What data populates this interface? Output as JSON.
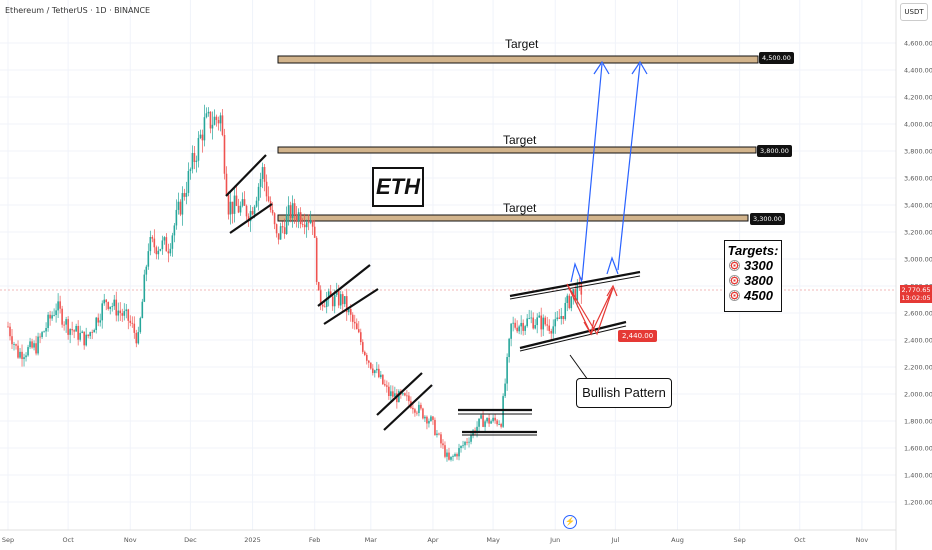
{
  "header": {
    "symbol": "Ethereum / TetherUS · 1D · BINANCE",
    "currency": "USDT"
  },
  "current_price": {
    "value": "2,770.65",
    "countdown": "13:02:05"
  },
  "annotations": {
    "eth_label": "ETH",
    "target_text": "Target",
    "targets_title": "Targets:",
    "targets_list": [
      "3300",
      "3800",
      "4500"
    ],
    "callout": "Bullish Pattern",
    "support_price": "2,440.00",
    "target_prices": [
      "4,500.00",
      "3,800.00",
      "3,300.00"
    ]
  },
  "colors": {
    "up": "#26a69a",
    "down": "#ef5350",
    "band": "#d2b48c",
    "arrow_blue": "#2962ff",
    "arrow_red": "#e53935"
  },
  "chart_data": {
    "type": "candlestick",
    "title": "Ethereum / TetherUS · 1D · BINANCE",
    "x_ticks": [
      "Sep",
      "Oct",
      "Nov",
      "Dec",
      "2025",
      "Feb",
      "Mar",
      "Apr",
      "May",
      "Jun",
      "Jul",
      "Aug",
      "Sep",
      "Oct",
      "Nov"
    ],
    "y_ticks": [
      "4,600.00",
      "4,400.00",
      "4,200.00",
      "4,000.00",
      "3,800.00",
      "3,600.00",
      "3,400.00",
      "3,200.00",
      "3,000.00",
      "2,800.00",
      "2,600.00",
      "2,400.00",
      "2,200.00",
      "2,000.00",
      "1,800.00",
      "1,600.00",
      "1,400.00",
      "1,200.00"
    ],
    "ylim": [
      1100,
      4700
    ],
    "last_price": 2770.65,
    "target_levels": [
      4500,
      3800,
      3300
    ],
    "support_level": 2440,
    "close_path": [
      [
        "2024-09-01",
        2500
      ],
      [
        "2024-09-06",
        2300
      ],
      [
        "2024-09-15",
        2350
      ],
      [
        "2024-09-25",
        2650
      ],
      [
        "2024-10-01",
        2500
      ],
      [
        "2024-10-10",
        2400
      ],
      [
        "2024-10-20",
        2700
      ],
      [
        "2024-10-31",
        2550
      ],
      [
        "2024-11-05",
        2400
      ],
      [
        "2024-11-10",
        3100
      ],
      [
        "2024-11-20",
        3100
      ],
      [
        "2024-11-30",
        3600
      ],
      [
        "2024-12-08",
        4000
      ],
      [
        "2024-12-16",
        4050
      ],
      [
        "2024-12-20",
        3400
      ],
      [
        "2024-12-31",
        3350
      ],
      [
        "2025-01-06",
        3650
      ],
      [
        "2025-01-13",
        3150
      ],
      [
        "2025-01-20",
        3350
      ],
      [
        "2025-01-31",
        3300
      ],
      [
        "2025-02-03",
        2700
      ],
      [
        "2025-02-15",
        2700
      ],
      [
        "2025-02-28",
        2250
      ],
      [
        "2025-03-10",
        2000
      ],
      [
        "2025-03-20",
        1950
      ],
      [
        "2025-03-31",
        1800
      ],
      [
        "2025-04-09",
        1500
      ],
      [
        "2025-04-15",
        1600
      ],
      [
        "2025-04-25",
        1800
      ],
      [
        "2025-05-05",
        1800
      ],
      [
        "2025-05-10",
        2500
      ],
      [
        "2025-05-20",
        2550
      ],
      [
        "2025-06-01",
        2500
      ],
      [
        "2025-06-10",
        2750
      ],
      [
        "2025-06-14",
        2770.65
      ]
    ]
  }
}
